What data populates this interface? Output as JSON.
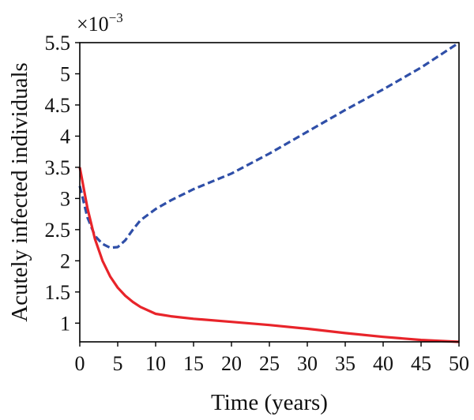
{
  "chart_data": {
    "type": "line",
    "xlabel": "Time (years)",
    "ylabel": "Acutely infected individuals",
    "y_multiplier": {
      "base": "×10",
      "exponent": "−3"
    },
    "xlim": [
      0,
      50
    ],
    "ylim": [
      0.7,
      5.5
    ],
    "x_ticks": [
      0,
      5,
      10,
      15,
      20,
      25,
      30,
      35,
      40,
      45,
      50
    ],
    "x_tick_labels": [
      "0",
      "5",
      "10",
      "15",
      "20",
      "25",
      "30",
      "35",
      "40",
      "45",
      "50"
    ],
    "y_ticks": [
      1,
      1.5,
      2,
      2.5,
      3,
      3.5,
      4,
      4.5,
      5,
      5.5
    ],
    "y_tick_labels": [
      "1",
      "1.5",
      "2",
      "2.5",
      "3",
      "3.5",
      "4",
      "4.5",
      "5",
      "5.5"
    ],
    "grid": false,
    "series": [
      {
        "style": "dashed",
        "color": "#2f4fa8",
        "points": [
          [
            0,
            3.2
          ],
          [
            1,
            2.7
          ],
          [
            2,
            2.4
          ],
          [
            3,
            2.27
          ],
          [
            4,
            2.21
          ],
          [
            5,
            2.22
          ],
          [
            6,
            2.33
          ],
          [
            7,
            2.5
          ],
          [
            8,
            2.65
          ],
          [
            10,
            2.83
          ],
          [
            12,
            2.97
          ],
          [
            15,
            3.15
          ],
          [
            18,
            3.3
          ],
          [
            20,
            3.4
          ],
          [
            25,
            3.72
          ],
          [
            30,
            4.07
          ],
          [
            35,
            4.42
          ],
          [
            40,
            4.75
          ],
          [
            45,
            5.1
          ],
          [
            50,
            5.5
          ]
        ]
      },
      {
        "style": "solid",
        "color": "#e8242a",
        "points": [
          [
            0,
            3.5
          ],
          [
            1,
            2.85
          ],
          [
            2,
            2.35
          ],
          [
            3,
            2.0
          ],
          [
            4,
            1.75
          ],
          [
            5,
            1.57
          ],
          [
            6,
            1.44
          ],
          [
            7,
            1.34
          ],
          [
            8,
            1.26
          ],
          [
            10,
            1.15
          ],
          [
            12,
            1.11
          ],
          [
            15,
            1.07
          ],
          [
            20,
            1.02
          ],
          [
            25,
            0.97
          ],
          [
            30,
            0.91
          ],
          [
            35,
            0.84
          ],
          [
            40,
            0.78
          ],
          [
            45,
            0.73
          ],
          [
            50,
            0.7
          ]
        ]
      }
    ]
  }
}
